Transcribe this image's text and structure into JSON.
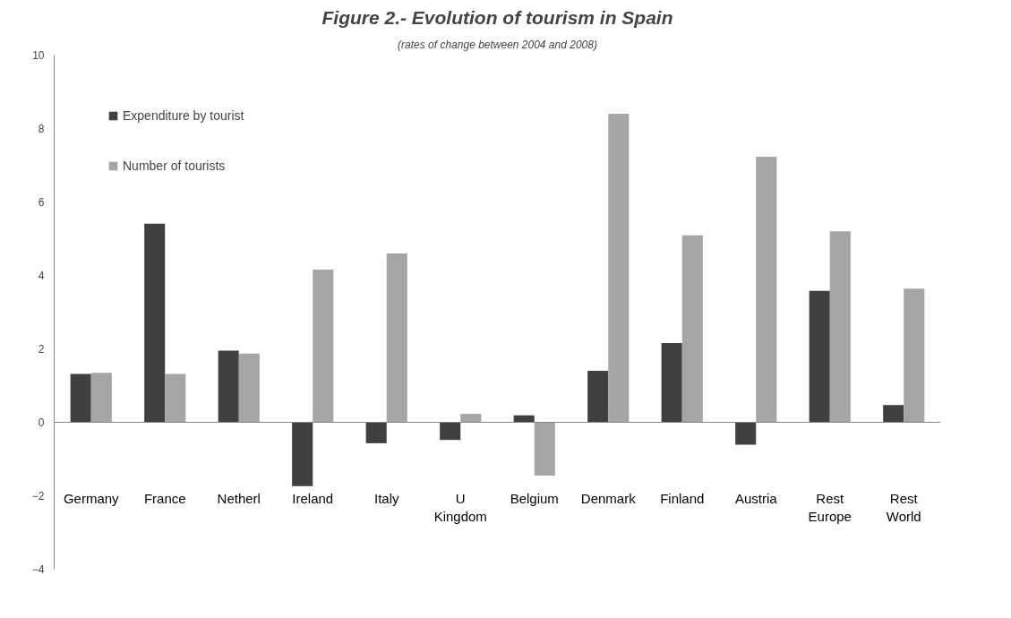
{
  "chart_data": {
    "type": "bar",
    "title": "Figure 2.- Evolution of tourism in Spain",
    "subtitle": "(rates of change between 2004 and 2008)",
    "categories": [
      "Germany",
      "France",
      "Netherl",
      "Ireland",
      "Italy",
      "U Kingdom",
      "Belgium",
      "Denmark",
      "Finland",
      "Austria",
      "Rest Europe",
      "Rest World"
    ],
    "series": [
      {
        "name": "Expenditure by tourist",
        "color": "#404040",
        "values": [
          1.32,
          5.41,
          1.95,
          -1.74,
          -0.57,
          -0.48,
          0.19,
          1.4,
          2.16,
          -0.61,
          3.58,
          0.47
        ]
      },
      {
        "name": "Number of tourists",
        "color": "#a5a5a5",
        "values": [
          1.35,
          1.32,
          1.87,
          4.16,
          4.6,
          0.23,
          -1.45,
          8.4,
          5.09,
          7.23,
          5.2,
          3.64
        ]
      }
    ],
    "ylim": [
      -4,
      10
    ],
    "yticks": [
      -4,
      -2,
      0,
      2,
      4,
      6,
      8,
      10
    ],
    "legend": "top left"
  }
}
